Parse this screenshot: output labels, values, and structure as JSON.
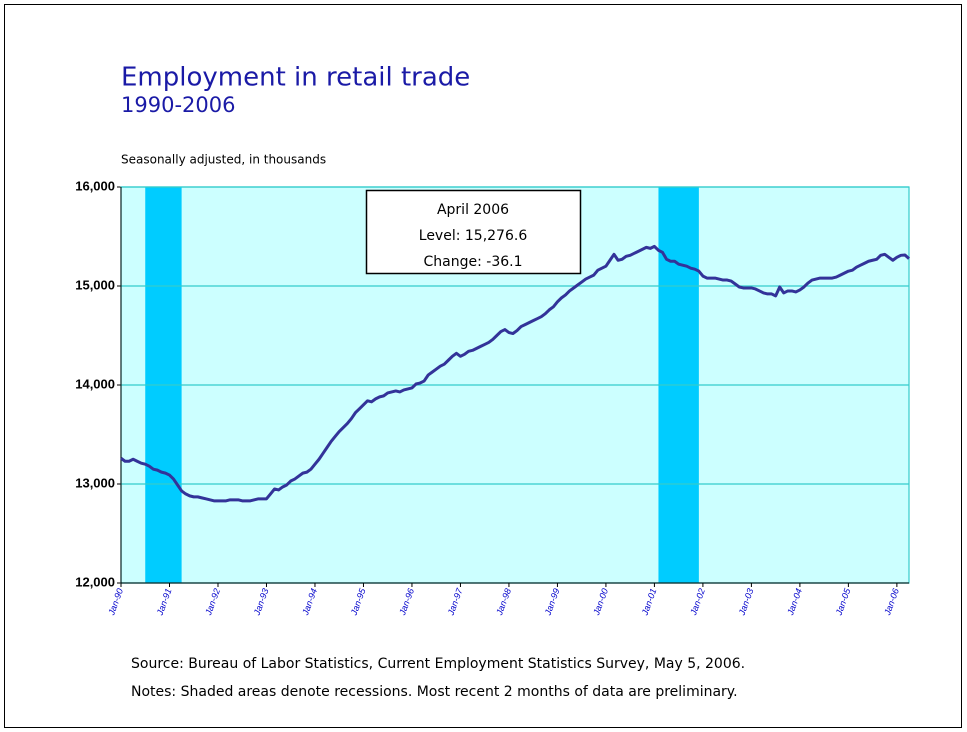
{
  "chart_data": {
    "type": "line",
    "title": "Employment in retail trade",
    "subtitle": "1990-2006",
    "y_label": "Seasonally adjusted, in thousands",
    "source": "Source:  Bureau of Labor Statistics, Current Employment Statistics Survey, May 5, 2006.",
    "notes": "Notes:  Shaded areas denote recessions.  Most recent 2 months of data are preliminary.",
    "annotation": [
      "April 2006",
      "Level: 15,276.6",
      "Change: -36.1"
    ],
    "categories": [
      "Jan-90",
      null,
      null,
      null,
      null,
      null,
      null,
      null,
      null,
      null,
      null,
      null,
      "Jan-91",
      null,
      null,
      null,
      null,
      null,
      null,
      null,
      null,
      null,
      null,
      null,
      "Jan-92",
      null,
      null,
      null,
      null,
      null,
      null,
      null,
      null,
      null,
      null,
      null,
      "Jan-93",
      null,
      null,
      null,
      null,
      null,
      null,
      null,
      null,
      null,
      null,
      null,
      "Jan-94",
      null,
      null,
      null,
      null,
      null,
      null,
      null,
      null,
      null,
      null,
      null,
      "Jan-95",
      null,
      null,
      null,
      null,
      null,
      null,
      null,
      null,
      null,
      null,
      null,
      "Jan-96",
      null,
      null,
      null,
      null,
      null,
      null,
      null,
      null,
      null,
      null,
      null,
      "Jan-97",
      null,
      null,
      null,
      null,
      null,
      null,
      null,
      null,
      null,
      null,
      null,
      "Jan-98",
      null,
      null,
      null,
      null,
      null,
      null,
      null,
      null,
      null,
      null,
      null,
      "Jan-99",
      null,
      null,
      null,
      null,
      null,
      null,
      null,
      null,
      null,
      null,
      null,
      "Jan-00",
      null,
      null,
      null,
      null,
      null,
      null,
      null,
      null,
      null,
      null,
      null,
      "Jan-01",
      null,
      null,
      null,
      null,
      null,
      null,
      null,
      null,
      null,
      null,
      null,
      "Jan-02",
      null,
      null,
      null,
      null,
      null,
      null,
      null,
      null,
      null,
      null,
      null,
      "Jan-03",
      null,
      null,
      null,
      null,
      null,
      null,
      null,
      null,
      null,
      null,
      null,
      "Jan-04",
      null,
      null,
      null,
      null,
      null,
      null,
      null,
      null,
      null,
      null,
      null,
      "Jan-05",
      null,
      null,
      null,
      null,
      null,
      null,
      null,
      null,
      null,
      null,
      null,
      "Jan-06",
      null,
      null,
      null
    ],
    "series": [
      {
        "color": "#333399",
        "values": [
          13260,
          13230,
          13230,
          13250,
          13230,
          13210,
          13200,
          13180,
          13150,
          13140,
          13120,
          13110,
          13090,
          13050,
          12990,
          12930,
          12900,
          12880,
          12870,
          12870,
          12860,
          12850,
          12840,
          12830,
          12830,
          12830,
          12830,
          12840,
          12840,
          12840,
          12830,
          12830,
          12830,
          12840,
          12850,
          12850,
          12850,
          12900,
          12950,
          12940,
          12970,
          12990,
          13030,
          13050,
          13080,
          13110,
          13120,
          13150,
          13200,
          13250,
          13310,
          13370,
          13430,
          13480,
          13530,
          13570,
          13610,
          13660,
          13720,
          13760,
          13800,
          13840,
          13830,
          13860,
          13880,
          13890,
          13920,
          13930,
          13940,
          13930,
          13950,
          13960,
          13970,
          14010,
          14020,
          14040,
          14100,
          14130,
          14160,
          14190,
          14210,
          14250,
          14290,
          14320,
          14290,
          14310,
          14340,
          14350,
          14370,
          14390,
          14410,
          14430,
          14460,
          14500,
          14540,
          14560,
          14530,
          14520,
          14550,
          14590,
          14610,
          14630,
          14650,
          14670,
          14690,
          14720,
          14760,
          14790,
          14840,
          14880,
          14910,
          14950,
          14980,
          15010,
          15040,
          15070,
          15090,
          15110,
          15160,
          15180,
          15200,
          15260,
          15320,
          15260,
          15270,
          15300,
          15310,
          15330,
          15350,
          15370,
          15390,
          15380,
          15400,
          15360,
          15340,
          15270,
          15250,
          15250,
          15220,
          15210,
          15200,
          15180,
          15170,
          15150,
          15100,
          15080,
          15080,
          15080,
          15070,
          15060,
          15060,
          15050,
          15020,
          14990,
          14980,
          14980,
          14980,
          14970,
          14950,
          14930,
          14920,
          14920,
          14900,
          14990,
          14930,
          14950,
          14950,
          14940,
          14960,
          14990,
          15030,
          15060,
          15070,
          15080,
          15080,
          15080,
          15080,
          15090,
          15110,
          15130,
          15150,
          15160,
          15190,
          15210,
          15230,
          15250,
          15260,
          15270,
          15310,
          15320,
          15290,
          15260,
          15290,
          15310,
          15313,
          15277
        ]
      }
    ],
    "recessions": [
      [
        6,
        15
      ],
      [
        133,
        143
      ]
    ],
    "recession_color": "#00ccff",
    "plot_background": "#ccffff",
    "grid_color": "#33cccc",
    "ylim": [
      12000,
      16000
    ],
    "yticks": [
      {
        "value": 12000,
        "label": "12,000"
      },
      {
        "value": 13000,
        "label": "13,000"
      },
      {
        "value": 14000,
        "label": "14,000"
      },
      {
        "value": 15000,
        "label": "15,000"
      },
      {
        "value": 16000,
        "label": "16,000"
      }
    ],
    "grid": true
  }
}
